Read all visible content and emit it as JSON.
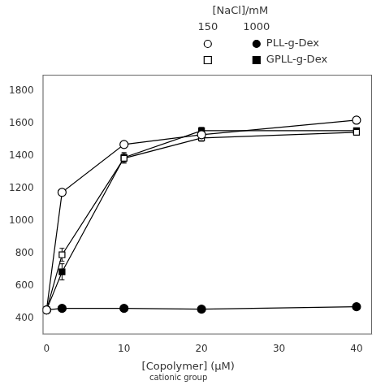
{
  "chart_data": {
    "type": "line",
    "xlabel": "[Copolymer]",
    "xlabel_sub": "cationic group",
    "xlabel_unit": "(μM)",
    "legend_title": "[NaCl]/mM",
    "x": [
      0,
      2,
      10,
      20,
      40
    ],
    "series": [
      {
        "name": "PLL-g-Dex",
        "nacl": "150",
        "color": "black",
        "marker": "open-circle",
        "line_style": "solid",
        "values": [
          450,
          1175,
          1470,
          1530,
          1620
        ],
        "errors": [
          0,
          0,
          20,
          25,
          20
        ]
      },
      {
        "name": "PLL-g-Dex",
        "nacl": "1000",
        "color": "black",
        "marker": "circle",
        "line_style": "solid",
        "values": [
          450,
          460,
          460,
          455,
          470
        ],
        "errors": [
          0,
          0,
          0,
          0,
          0
        ]
      },
      {
        "name": "GPLL-g-Dex",
        "nacl": "150",
        "color": "black",
        "marker": "open-square",
        "line_style": "solid",
        "values": [
          450,
          790,
          1385,
          1510,
          1545
        ],
        "errors": [
          15,
          40,
          30,
          20,
          15
        ]
      },
      {
        "name": "GPLL-g-Dex",
        "nacl": "1000",
        "color": "black",
        "marker": "square",
        "line_style": "solid",
        "values": [
          450,
          685,
          1390,
          1555,
          1555
        ],
        "errors": [
          15,
          50,
          30,
          20,
          15
        ]
      }
    ],
    "xlim": [
      -0.5,
      42
    ],
    "xticks": [
      0,
      10,
      20,
      30,
      40
    ],
    "ylim": [
      300,
      1900
    ],
    "yticks": [
      400,
      600,
      800,
      1000,
      1200,
      1400,
      1600,
      1800
    ],
    "grid": false
  }
}
